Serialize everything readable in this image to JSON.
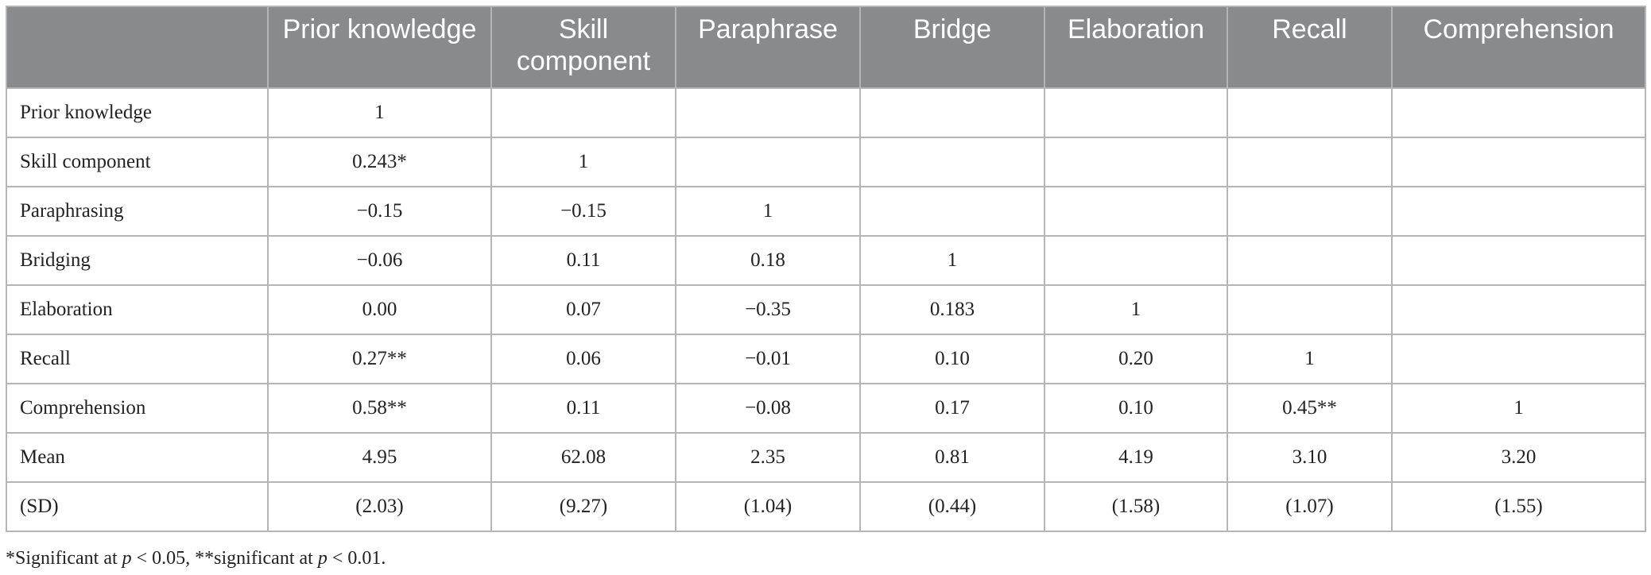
{
  "table": {
    "header": [
      "",
      "Prior knowledge",
      "Skill component",
      "Paraphrase",
      "Bridge",
      "Elaboration",
      "Recall",
      "Comprehension"
    ],
    "rows": [
      [
        "Prior knowledge",
        "1"
      ],
      [
        "Skill component",
        "0.243*",
        "1"
      ],
      [
        "Paraphrasing",
        "−0.15",
        "−0.15",
        "1"
      ],
      [
        "Bridging",
        "−0.06",
        "0.11",
        "0.18",
        "1"
      ],
      [
        "Elaboration",
        "0.00",
        "0.07",
        "−0.35",
        "0.183",
        "1"
      ],
      [
        "Recall",
        "0.27**",
        "0.06",
        "−0.01",
        "0.10",
        "0.20",
        "1"
      ],
      [
        "Comprehension",
        "0.58**",
        "0.11",
        "−0.08",
        "0.17",
        "0.10",
        "0.45**",
        "1"
      ],
      [
        "Mean",
        "4.95",
        "62.08",
        "2.35",
        "0.81",
        "4.19",
        "3.10",
        "3.20"
      ],
      [
        "(SD)",
        "(2.03)",
        "(9.27)",
        "(1.04)",
        "(0.44)",
        "(1.58)",
        "(1.07)",
        "(1.55)"
      ]
    ]
  },
  "footnote": {
    "parts": [
      "*Significant at ",
      "p",
      " < 0.05, **significant at ",
      "p",
      " < 0.01."
    ]
  }
}
